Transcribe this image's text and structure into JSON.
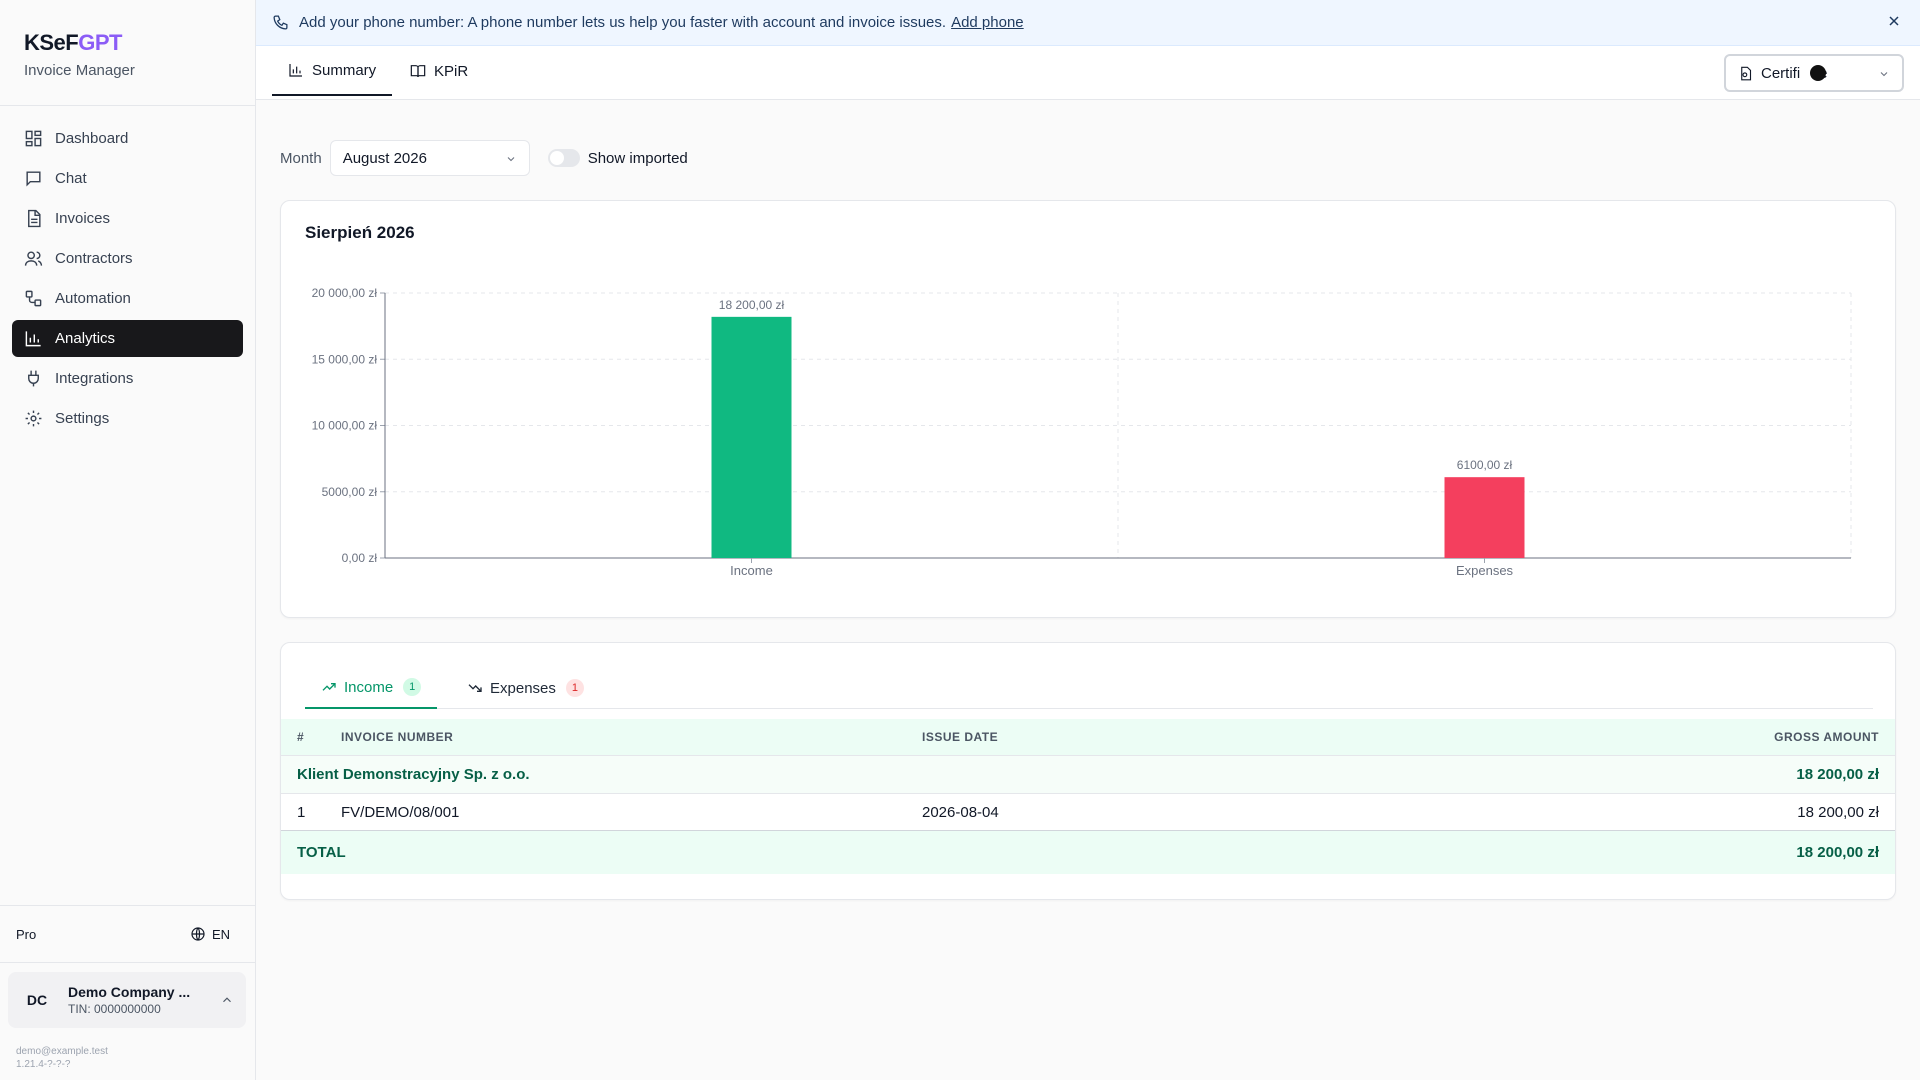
{
  "brand": {
    "name_part1": "KSeF",
    "name_part2": "GPT",
    "subtitle": "Invoice Manager"
  },
  "sidebar": {
    "items": [
      {
        "label": "Dashboard",
        "icon": "dashboard-icon"
      },
      {
        "label": "Chat",
        "icon": "chat-icon"
      },
      {
        "label": "Invoices",
        "icon": "invoice-icon"
      },
      {
        "label": "Contractors",
        "icon": "users-icon"
      },
      {
        "label": "Automation",
        "icon": "workflow-icon"
      },
      {
        "label": "Analytics",
        "icon": "bar-chart-icon",
        "active": true
      },
      {
        "label": "Integrations",
        "icon": "plug-icon"
      },
      {
        "label": "Settings",
        "icon": "gear-icon"
      }
    ],
    "plan": "Pro",
    "language": "EN",
    "account": {
      "initials": "DC",
      "name": "Demo Company ...",
      "tin": "TIN: 0000000000"
    },
    "email": "demo@example.test",
    "version": "1.21.4-?-?-?"
  },
  "banner": {
    "text": "Add your phone number: A phone number lets us help you faster with account and invoice issues.",
    "link": "Add phone"
  },
  "tabs": {
    "summary": "Summary",
    "kpir": "KPiR"
  },
  "certificate_select": {
    "value": "Certificate",
    "visible_text_left": "Certifi",
    "visible_text_right": "e"
  },
  "filters": {
    "month_label": "Month",
    "month_value": "August 2026",
    "show_imported_label": "Show imported",
    "show_imported": false
  },
  "chart_data": {
    "type": "bar",
    "title": "Sierpień 2026",
    "categories": [
      "Income",
      "Expenses"
    ],
    "values": [
      18200,
      6100
    ],
    "colors": [
      "#10b981",
      "#f43f5e"
    ],
    "data_labels": [
      "18 200,00 zł",
      "6100,00 zł"
    ],
    "ylim": [
      0,
      20000
    ],
    "yticks": [
      0,
      5000,
      10000,
      15000,
      20000
    ],
    "ytick_labels": [
      "0,00 zł",
      "5000,00 zł",
      "10 000,00 zł",
      "15 000,00 zł",
      "20 000,00 zł"
    ],
    "grid": true
  },
  "invoice_tabs": {
    "income": {
      "label": "Income",
      "count": "1"
    },
    "expenses": {
      "label": "Expenses",
      "count": "1"
    }
  },
  "table": {
    "headers": {
      "num": "#",
      "invoice": "INVOICE NUMBER",
      "date": "ISSUE DATE",
      "amount": "GROSS AMOUNT"
    },
    "group": {
      "name": "Klient Demonstracyjny Sp. z o.o.",
      "amount": "18 200,00 zł"
    },
    "rows": [
      {
        "num": "1",
        "invoice": "FV/DEMO/08/001",
        "date": "2026-08-04",
        "amount": "18 200,00 zł"
      }
    ],
    "total": {
      "label": "TOTAL",
      "amount": "18 200,00 zł"
    }
  }
}
